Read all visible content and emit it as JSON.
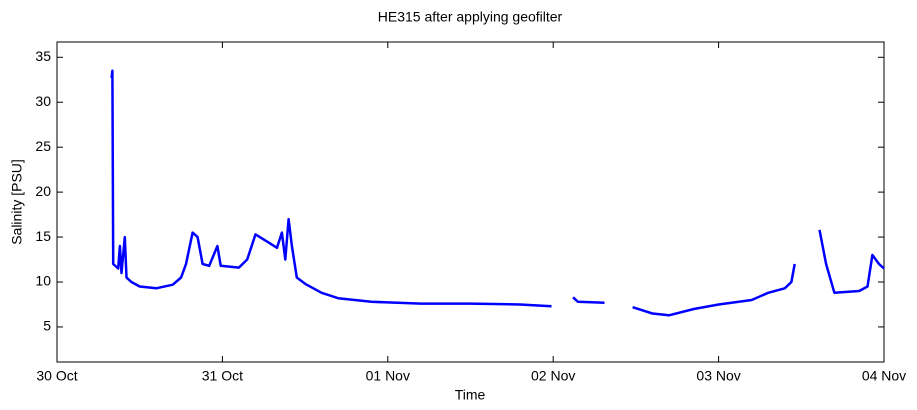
{
  "chart_data": {
    "type": "line",
    "title": "HE315 after applying geofilter",
    "x_label": "Time",
    "y_label": "Salinity [PSU]",
    "x": [
      0.33,
      0.335,
      0.34,
      0.37,
      0.38,
      0.39,
      0.41,
      0.42,
      0.45,
      0.5,
      0.6,
      0.7,
      0.75,
      0.78,
      0.82,
      0.85,
      0.88,
      0.92,
      0.97,
      0.99,
      1.1,
      1.15,
      1.2,
      1.27,
      1.33,
      1.36,
      1.38,
      1.4,
      1.42,
      1.45,
      1.5,
      1.6,
      1.7,
      1.9,
      2.2,
      2.5,
      2.8,
      2.99,
      3.05,
      3.12,
      3.15,
      3.31,
      3.4,
      3.48,
      3.6,
      3.7,
      3.85,
      4.0,
      4.2,
      4.3,
      4.4,
      4.44,
      4.46,
      4.53,
      4.61,
      4.65,
      4.7,
      4.85,
      4.9,
      4.93,
      4.97,
      5.0
    ],
    "series": [
      {
        "name": "Salinity",
        "color": "#0000ff",
        "values": [
          32.7,
          33.5,
          12,
          11.5,
          14,
          11,
          15,
          10.5,
          10,
          9.5,
          9.3,
          9.7,
          10.5,
          12,
          15.5,
          15,
          12,
          11.8,
          14,
          11.8,
          11.6,
          12.5,
          15.3,
          14.5,
          13.8,
          15.5,
          12.5,
          17,
          14,
          10.5,
          9.8,
          8.8,
          8.2,
          7.8,
          7.6,
          7.6,
          7.5,
          7.3,
          null,
          8.3,
          7.8,
          7.7,
          null,
          7.2,
          6.5,
          6.3,
          7,
          7.5,
          8,
          8.8,
          9.3,
          10,
          12,
          null,
          15.8,
          12,
          8.8,
          9,
          9.5,
          13,
          12,
          11.5
        ]
      }
    ],
    "xlim": [
      0,
      5
    ],
    "ylim": [
      1.1,
      36.7
    ],
    "xticks": [
      {
        "value": 0,
        "label": "30 Oct"
      },
      {
        "value": 1,
        "label": "31 Oct"
      },
      {
        "value": 2,
        "label": "01 Nov"
      },
      {
        "value": 3,
        "label": "02 Nov"
      },
      {
        "value": 4,
        "label": "03 Nov"
      },
      {
        "value": 5,
        "label": "04 Nov"
      }
    ],
    "yticks": [
      5,
      10,
      15,
      20,
      25,
      30,
      35
    ]
  }
}
